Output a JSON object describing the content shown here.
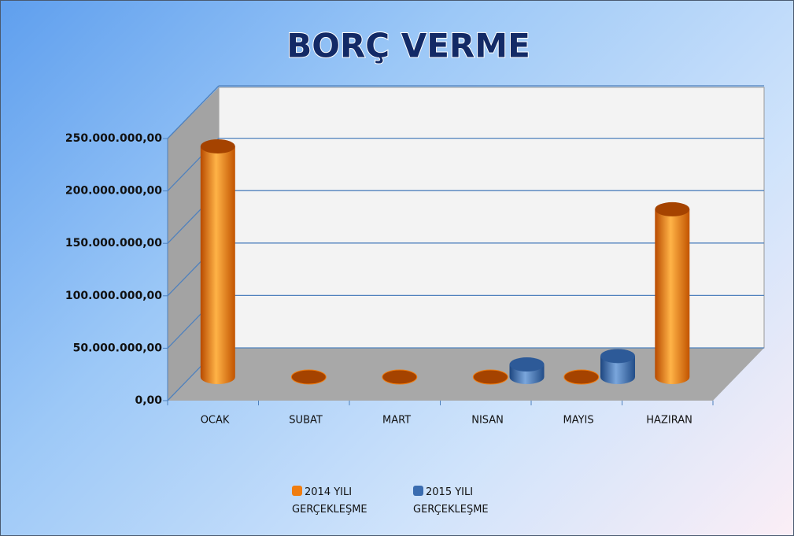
{
  "chart_data": {
    "type": "bar3d",
    "title": "BORÇ VERME",
    "categories": [
      "OCAK",
      "SUBAT",
      "MART",
      "NISAN",
      "MAYIS",
      "HAZIRAN"
    ],
    "series": [
      {
        "name": "2014 YILI GERÇEKLEŞME",
        "color": "#f07d10",
        "values": [
          220000000,
          0,
          0,
          0,
          0,
          160000000
        ]
      },
      {
        "name": "2015 YILI GERÇEKLEŞME",
        "color": "#3a6cb0",
        "values": [
          null,
          null,
          null,
          12000000,
          20000000,
          null
        ]
      }
    ],
    "ylim": [
      0,
      250000000
    ],
    "yticks": [
      {
        "value": 0,
        "label": "0,00"
      },
      {
        "value": 50000000,
        "label": "50.000.000,00"
      },
      {
        "value": 100000000,
        "label": "100.000.000,00"
      },
      {
        "value": 150000000,
        "label": "150.000.000,00"
      },
      {
        "value": 200000000,
        "label": "200.000.000,00"
      },
      {
        "value": 250000000,
        "label": "250.000.000,00"
      }
    ],
    "grid": true,
    "legend": "bottom"
  }
}
